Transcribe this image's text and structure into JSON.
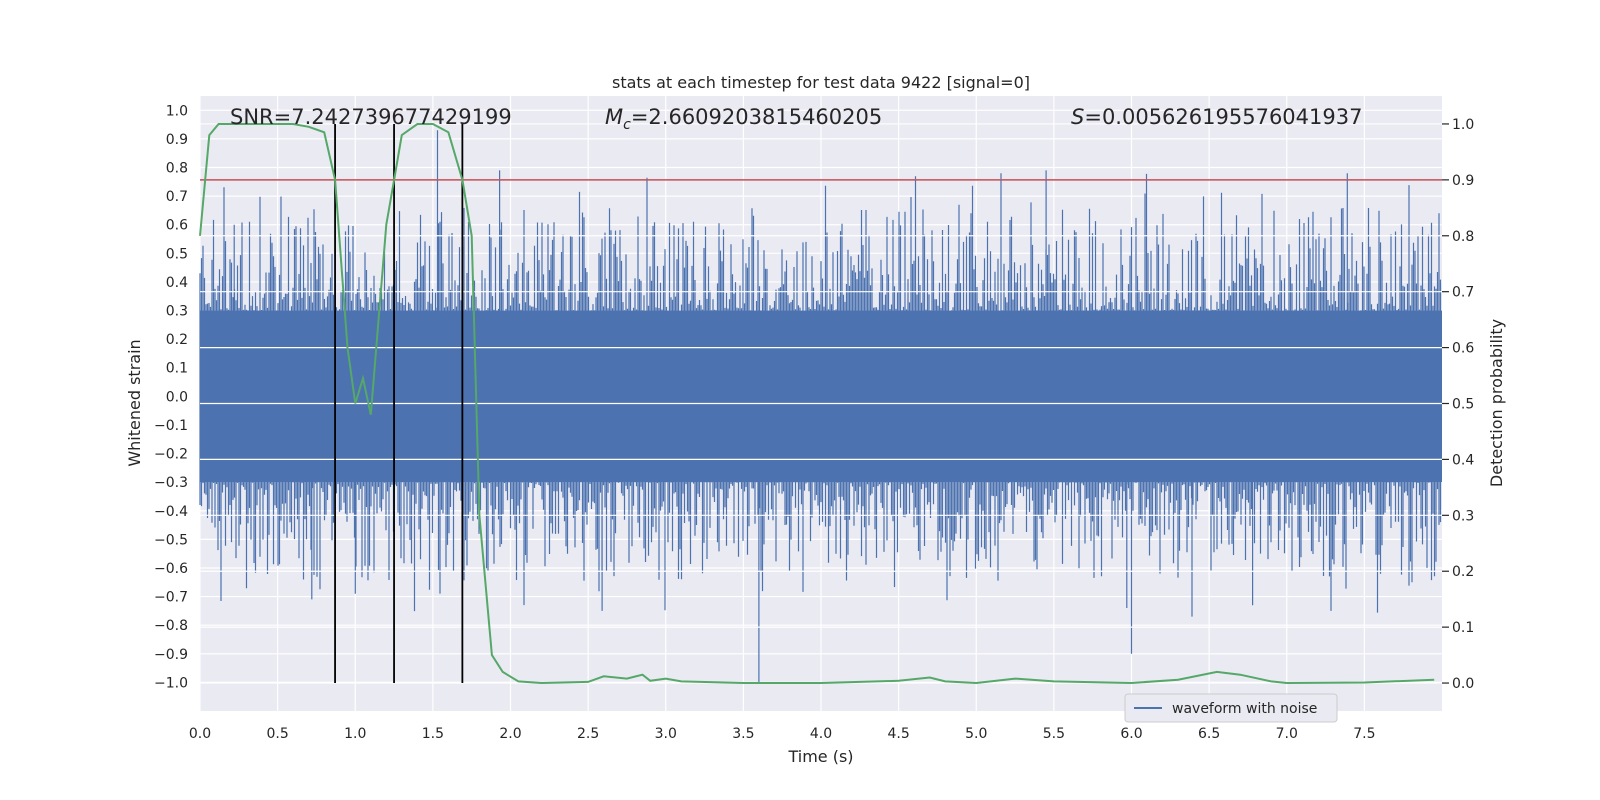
{
  "chart_data": {
    "type": "line",
    "title": "stats at each timestep for test data 9422 [signal=0]",
    "xlabel": "Time (s)",
    "ylabel": "Whitened strain",
    "ylabel_right": "Detection probability",
    "xlim": [
      0.0,
      8.0
    ],
    "ylim": [
      -1.1,
      1.05
    ],
    "ylim_right": [
      -0.05,
      1.05
    ],
    "x_ticks": [
      "0.0",
      "0.5",
      "1.0",
      "1.5",
      "2.0",
      "2.5",
      "3.0",
      "3.5",
      "4.0",
      "4.5",
      "5.0",
      "5.5",
      "6.0",
      "6.5",
      "7.0",
      "7.5"
    ],
    "y_ticks": [
      "1.0",
      "0.9",
      "0.8",
      "0.7",
      "0.6",
      "0.5",
      "0.4",
      "0.3",
      "0.2",
      "0.1",
      "0.0",
      "−0.1",
      "−0.2",
      "−0.3",
      "−0.4",
      "−0.5",
      "−0.6",
      "−0.7",
      "−0.8",
      "−0.9",
      "−1.0"
    ],
    "y_ticks_right": [
      "1.0",
      "0.9",
      "0.8",
      "0.7",
      "0.6",
      "0.5",
      "0.4",
      "0.3",
      "0.2",
      "0.1",
      "0.0"
    ],
    "annotations": {
      "snr": "SNR=7.242739677429199",
      "mc_symbol": "M",
      "mc_sub": "c",
      "mc_value": "=2.6609203815460205",
      "s_symbol": "S",
      "s_value": "=0.005626195576041937"
    },
    "legend": [
      "waveform with noise"
    ],
    "threshold_right": 0.9,
    "vlines_x": [
      0.87,
      1.25,
      1.69
    ],
    "series": [
      {
        "name": "waveform with noise",
        "axis": "left",
        "color": "#4c72b0",
        "envelope": {
          "core": 0.3,
          "max_pos": 0.78,
          "max_neg": -0.76
        },
        "spikes": [
          [
            0.22,
            0.6
          ],
          [
            1.53,
            0.93
          ],
          [
            1.93,
            0.79
          ],
          [
            5.45,
            0.79
          ],
          [
            7.39,
            0.78
          ],
          [
            3.6,
            -1.0
          ],
          [
            5.97,
            -0.74
          ],
          [
            6.0,
            -0.9
          ],
          [
            0.72,
            -0.71
          ],
          [
            1.0,
            -0.69
          ],
          [
            2.59,
            -0.75
          ],
          [
            6.39,
            -0.77
          ],
          [
            6.78,
            -0.73
          ]
        ]
      },
      {
        "name": "detection probability",
        "axis": "right",
        "color": "#55a868",
        "x": [
          0.0,
          0.06,
          0.12,
          0.2,
          0.4,
          0.6,
          0.7,
          0.8,
          0.87,
          0.95,
          1.0,
          1.05,
          1.1,
          1.2,
          1.25,
          1.3,
          1.4,
          1.5,
          1.6,
          1.69,
          1.75,
          1.8,
          1.88,
          1.95,
          2.05,
          2.2,
          2.5,
          2.6,
          2.75,
          2.85,
          2.9,
          3.0,
          3.1,
          3.5,
          4.0,
          4.5,
          4.7,
          4.8,
          5.0,
          5.25,
          5.5,
          6.0,
          6.3,
          6.55,
          6.7,
          6.9,
          7.0,
          7.5,
          7.95
        ],
        "y": [
          0.8,
          0.98,
          1.0,
          1.0,
          1.0,
          1.0,
          0.995,
          0.985,
          0.9,
          0.6,
          0.5,
          0.545,
          0.48,
          0.82,
          0.9,
          0.98,
          1.0,
          1.0,
          0.985,
          0.9,
          0.8,
          0.3,
          0.05,
          0.02,
          0.003,
          0.0,
          0.002,
          0.012,
          0.008,
          0.015,
          0.004,
          0.008,
          0.003,
          0.0,
          0.0,
          0.004,
          0.01,
          0.003,
          0.0,
          0.008,
          0.003,
          0.0,
          0.006,
          0.02,
          0.015,
          0.003,
          0.0,
          0.001,
          0.006
        ]
      },
      {
        "name": "threshold",
        "axis": "right",
        "color": "#c44e52",
        "y": 0.9
      }
    ]
  }
}
